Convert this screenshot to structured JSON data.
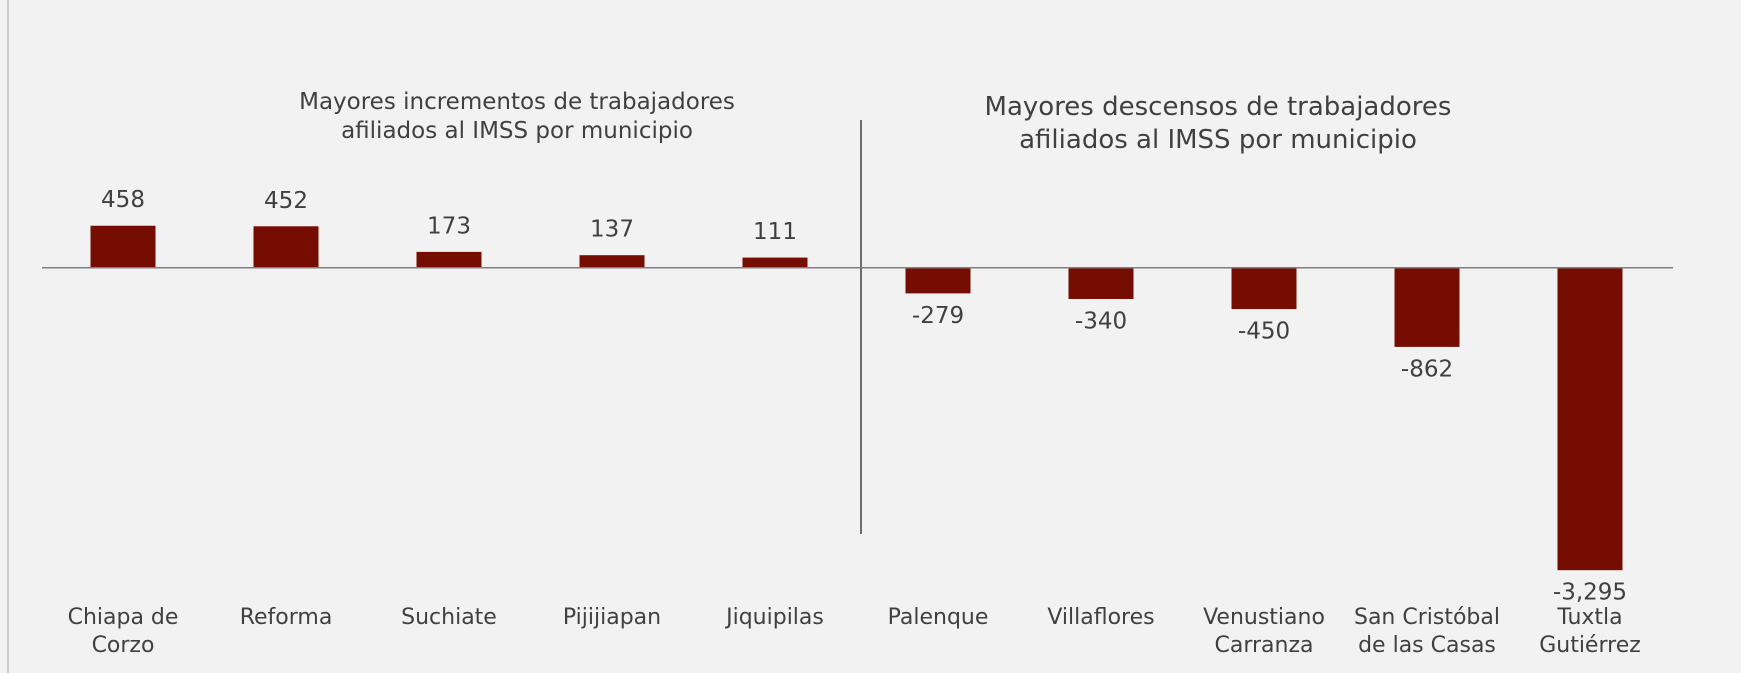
{
  "chart_data": {
    "type": "bar",
    "annotations": [
      "Mayores incrementos de trabajadores afiliados al IMSS por municipio",
      "Mayores descensos de trabajadores afiliados al IMSS por municipio"
    ],
    "categories": [
      "Chiapa de Corzo",
      "Reforma",
      "Suchiate",
      "Pijijiapan",
      "Jiquipilas",
      "Palenque",
      "Villaflores",
      "Venustiano Carranza",
      "San Cristóbal de las Casas",
      "Tuxtla Gutiérrez"
    ],
    "values": [
      458,
      452,
      173,
      137,
      111,
      -279,
      -340,
      -450,
      -862,
      -3295
    ],
    "value_labels": [
      "458",
      "452",
      "173",
      "137",
      "111",
      "-279",
      "-340",
      "-450",
      "-862",
      "-3,295"
    ],
    "color": "#760d02",
    "ylim": [
      -3500,
      1000
    ]
  }
}
